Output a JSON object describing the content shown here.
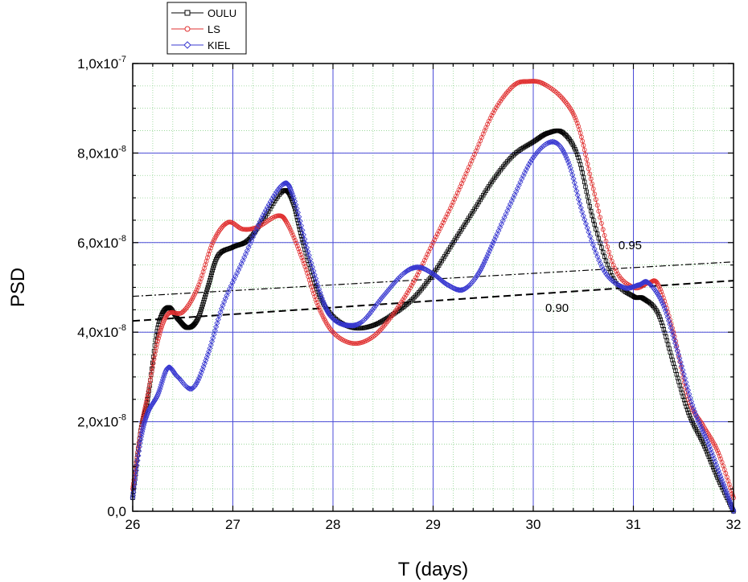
{
  "chart_data": {
    "type": "line",
    "xlabel": "T (days)",
    "ylabel": "PSD",
    "xlim": [
      26,
      32
    ],
    "ylim": [
      0,
      1e-07
    ],
    "x_ticks": [
      26,
      27,
      28,
      29,
      30,
      31,
      32
    ],
    "x_tick_labels": [
      "26",
      "27",
      "28",
      "29",
      "30",
      "31",
      "32"
    ],
    "y_ticks": [
      0,
      2e-08,
      4e-08,
      6e-08,
      8e-08,
      1e-07
    ],
    "y_tick_labels": [
      {
        "mantissa": "0,0",
        "exponent": ""
      },
      {
        "mantissa": "2,0x10",
        "exponent": "-8"
      },
      {
        "mantissa": "4,0x10",
        "exponent": "-8"
      },
      {
        "mantissa": "6,0x10",
        "exponent": "-8"
      },
      {
        "mantissa": "8,0x10",
        "exponent": "-8"
      },
      {
        "mantissa": "1,0x10",
        "exponent": "-7"
      }
    ],
    "grid": true,
    "legend_position": "top-left, outside plot",
    "series": [
      {
        "name": "OULU",
        "color": "#000000",
        "marker": "square",
        "points": [
          [
            26.0,
            3e-09
          ],
          [
            26.08,
            1.8e-08
          ],
          [
            26.15,
            2.5e-08
          ],
          [
            26.25,
            4.1e-08
          ],
          [
            26.35,
            4.55e-08
          ],
          [
            26.45,
            4.3e-08
          ],
          [
            26.55,
            4.1e-08
          ],
          [
            26.65,
            4.3e-08
          ],
          [
            26.75,
            5e-08
          ],
          [
            26.85,
            5.7e-08
          ],
          [
            27.0,
            5.9e-08
          ],
          [
            27.15,
            6.05e-08
          ],
          [
            27.3,
            6.5e-08
          ],
          [
            27.5,
            7.15e-08
          ],
          [
            27.6,
            6.9e-08
          ],
          [
            27.7,
            6e-08
          ],
          [
            27.85,
            4.9e-08
          ],
          [
            28.0,
            4.35e-08
          ],
          [
            28.2,
            4.1e-08
          ],
          [
            28.4,
            4.15e-08
          ],
          [
            28.6,
            4.4e-08
          ],
          [
            28.8,
            4.75e-08
          ],
          [
            29.0,
            5.3e-08
          ],
          [
            29.2,
            6e-08
          ],
          [
            29.4,
            6.7e-08
          ],
          [
            29.6,
            7.4e-08
          ],
          [
            29.8,
            7.95e-08
          ],
          [
            30.0,
            8.25e-08
          ],
          [
            30.15,
            8.45e-08
          ],
          [
            30.3,
            8.45e-08
          ],
          [
            30.45,
            7.9e-08
          ],
          [
            30.6,
            6.5e-08
          ],
          [
            30.8,
            5.2e-08
          ],
          [
            31.0,
            4.8e-08
          ],
          [
            31.1,
            4.75e-08
          ],
          [
            31.25,
            4.4e-08
          ],
          [
            31.4,
            3.3e-08
          ],
          [
            31.55,
            2.2e-08
          ],
          [
            31.7,
            1.5e-08
          ],
          [
            31.85,
            7e-09
          ],
          [
            32.0,
            0.0
          ]
        ]
      },
      {
        "name": "LS",
        "color": "#e03030",
        "marker": "circle",
        "points": [
          [
            26.0,
            5e-09
          ],
          [
            26.08,
            1.8e-08
          ],
          [
            26.15,
            2.6e-08
          ],
          [
            26.25,
            3.8e-08
          ],
          [
            26.35,
            4.4e-08
          ],
          [
            26.5,
            4.45e-08
          ],
          [
            26.65,
            5e-08
          ],
          [
            26.8,
            6e-08
          ],
          [
            26.95,
            6.45e-08
          ],
          [
            27.1,
            6.3e-08
          ],
          [
            27.25,
            6.35e-08
          ],
          [
            27.45,
            6.6e-08
          ],
          [
            27.55,
            6.4e-08
          ],
          [
            27.7,
            5.6e-08
          ],
          [
            27.85,
            4.6e-08
          ],
          [
            28.0,
            4e-08
          ],
          [
            28.2,
            3.75e-08
          ],
          [
            28.4,
            3.9e-08
          ],
          [
            28.6,
            4.4e-08
          ],
          [
            28.8,
            5.1e-08
          ],
          [
            29.0,
            6e-08
          ],
          [
            29.2,
            6.9e-08
          ],
          [
            29.4,
            7.9e-08
          ],
          [
            29.6,
            8.9e-08
          ],
          [
            29.8,
            9.5e-08
          ],
          [
            29.95,
            9.6e-08
          ],
          [
            30.1,
            9.55e-08
          ],
          [
            30.3,
            9.2e-08
          ],
          [
            30.45,
            8.6e-08
          ],
          [
            30.6,
            7.2e-08
          ],
          [
            30.8,
            5.5e-08
          ],
          [
            31.0,
            5e-08
          ],
          [
            31.15,
            5.1e-08
          ],
          [
            31.25,
            5.05e-08
          ],
          [
            31.4,
            4e-08
          ],
          [
            31.55,
            2.5e-08
          ],
          [
            31.7,
            1.9e-08
          ],
          [
            31.85,
            1.3e-08
          ],
          [
            32.0,
            3e-09
          ]
        ]
      },
      {
        "name": "KIEL",
        "color": "#3838d0",
        "marker": "diamond",
        "points": [
          [
            26.0,
            3e-09
          ],
          [
            26.08,
            1.6e-08
          ],
          [
            26.15,
            2.2e-08
          ],
          [
            26.25,
            2.6e-08
          ],
          [
            26.35,
            3.2e-08
          ],
          [
            26.45,
            3e-08
          ],
          [
            26.6,
            2.75e-08
          ],
          [
            26.75,
            3.5e-08
          ],
          [
            26.9,
            4.6e-08
          ],
          [
            27.1,
            5.6e-08
          ],
          [
            27.3,
            6.6e-08
          ],
          [
            27.5,
            7.3e-08
          ],
          [
            27.6,
            7.05e-08
          ],
          [
            27.75,
            5.8e-08
          ],
          [
            27.9,
            4.7e-08
          ],
          [
            28.0,
            4.3e-08
          ],
          [
            28.15,
            4.15e-08
          ],
          [
            28.3,
            4.25e-08
          ],
          [
            28.5,
            4.8e-08
          ],
          [
            28.7,
            5.3e-08
          ],
          [
            28.85,
            5.45e-08
          ],
          [
            29.0,
            5.3e-08
          ],
          [
            29.15,
            5.05e-08
          ],
          [
            29.3,
            4.95e-08
          ],
          [
            29.45,
            5.3e-08
          ],
          [
            29.6,
            6e-08
          ],
          [
            29.8,
            7e-08
          ],
          [
            30.0,
            7.9e-08
          ],
          [
            30.2,
            8.25e-08
          ],
          [
            30.35,
            7.8e-08
          ],
          [
            30.5,
            6.6e-08
          ],
          [
            30.7,
            5.4e-08
          ],
          [
            30.9,
            5e-08
          ],
          [
            31.05,
            5.05e-08
          ],
          [
            31.15,
            5.1e-08
          ],
          [
            31.3,
            4.6e-08
          ],
          [
            31.45,
            3.5e-08
          ],
          [
            31.6,
            2.3e-08
          ],
          [
            31.75,
            1.5e-08
          ],
          [
            31.9,
            6e-09
          ],
          [
            32.0,
            0.0
          ]
        ]
      }
    ],
    "reference_lines": [
      {
        "label": "0.95",
        "style": "dash-dot",
        "x": [
          26,
          32
        ],
        "y": [
          4.8e-08,
          5.57e-08
        ],
        "label_at": [
          30.85,
          5.85e-08
        ]
      },
      {
        "label": "0.90",
        "style": "dashed",
        "x": [
          26,
          32
        ],
        "y": [
          4.25e-08,
          5.15e-08
        ],
        "label_at": [
          30.12,
          4.45e-08
        ]
      }
    ]
  }
}
